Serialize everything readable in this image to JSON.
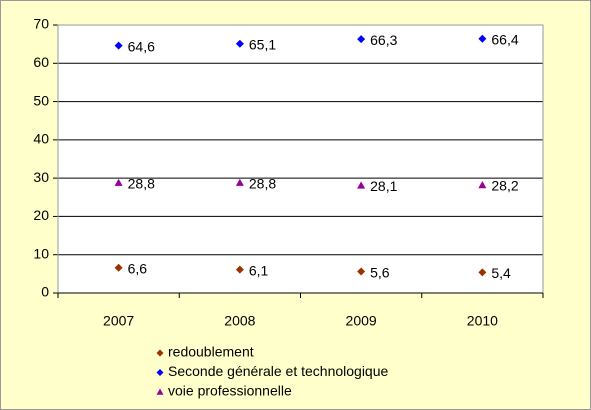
{
  "chart_data": {
    "type": "scatter",
    "categories": [
      "2007",
      "2008",
      "2009",
      "2010"
    ],
    "series": [
      {
        "name": "redoublement",
        "color": "#993300",
        "marker": "diamond",
        "values": [
          6.6,
          6.1,
          5.6,
          5.4
        ],
        "value_labels": [
          "6,6",
          "6,1",
          "5,6",
          "5,4"
        ]
      },
      {
        "name": "Seconde générale et technologique",
        "color": "#0000ff",
        "marker": "diamond",
        "values": [
          64.6,
          65.1,
          66.3,
          66.4
        ],
        "value_labels": [
          "64,6",
          "65,1",
          "66,3",
          "66,4"
        ]
      },
      {
        "name": "voie professionnelle",
        "color": "#990099",
        "marker": "triangle",
        "values": [
          28.8,
          28.8,
          28.1,
          28.2
        ],
        "value_labels": [
          "28,8",
          "28,8",
          "28,1",
          "28,2"
        ]
      }
    ],
    "ylim": [
      0,
      70
    ],
    "yticks": [
      0,
      10,
      20,
      30,
      40,
      50,
      60,
      70
    ],
    "grid": true,
    "legend": "bottom"
  }
}
